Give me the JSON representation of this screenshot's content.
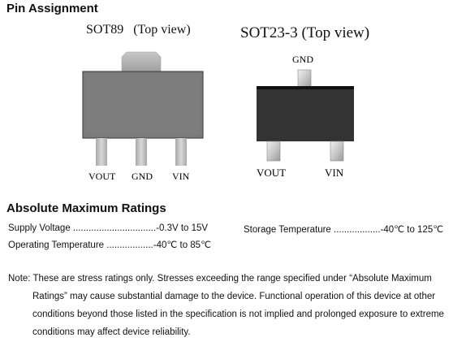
{
  "pin_assignment": {
    "heading": "Pin Assignment",
    "sot89": {
      "title": "SOT89   (Top view)",
      "pins": [
        "VOUT",
        "GND",
        "VIN"
      ],
      "package_color": "#7d7d7d",
      "tab_color": "#b4b4b4"
    },
    "sot23": {
      "title": "SOT23-3 (Top view)",
      "top_pin": "GND",
      "bottom_pins": [
        "VOUT",
        "VIN"
      ],
      "package_color": "#333333"
    }
  },
  "abs_max": {
    "heading": "Absolute Maximum Ratings",
    "rows": [
      {
        "label": "Supply Voltage ................................",
        "value": "-0.3V to 15V"
      },
      {
        "label": "Operating Temperature ..................",
        "value": "-40℃  to 85℃"
      },
      {
        "label": "Storage Temperature ..................",
        "value": "-40℃  to 125℃"
      }
    ]
  },
  "note": {
    "line1": "Note: These are stress ratings only. Stresses exceeding the range specified under “Absolute Maximum",
    "line2": "Ratings” may cause substantial damage to the device. Functional operation of this device at other",
    "line3": "conditions beyond those listed in the specification is not implied and prolonged exposure to extreme",
    "line4": "conditions may affect device reliability."
  }
}
